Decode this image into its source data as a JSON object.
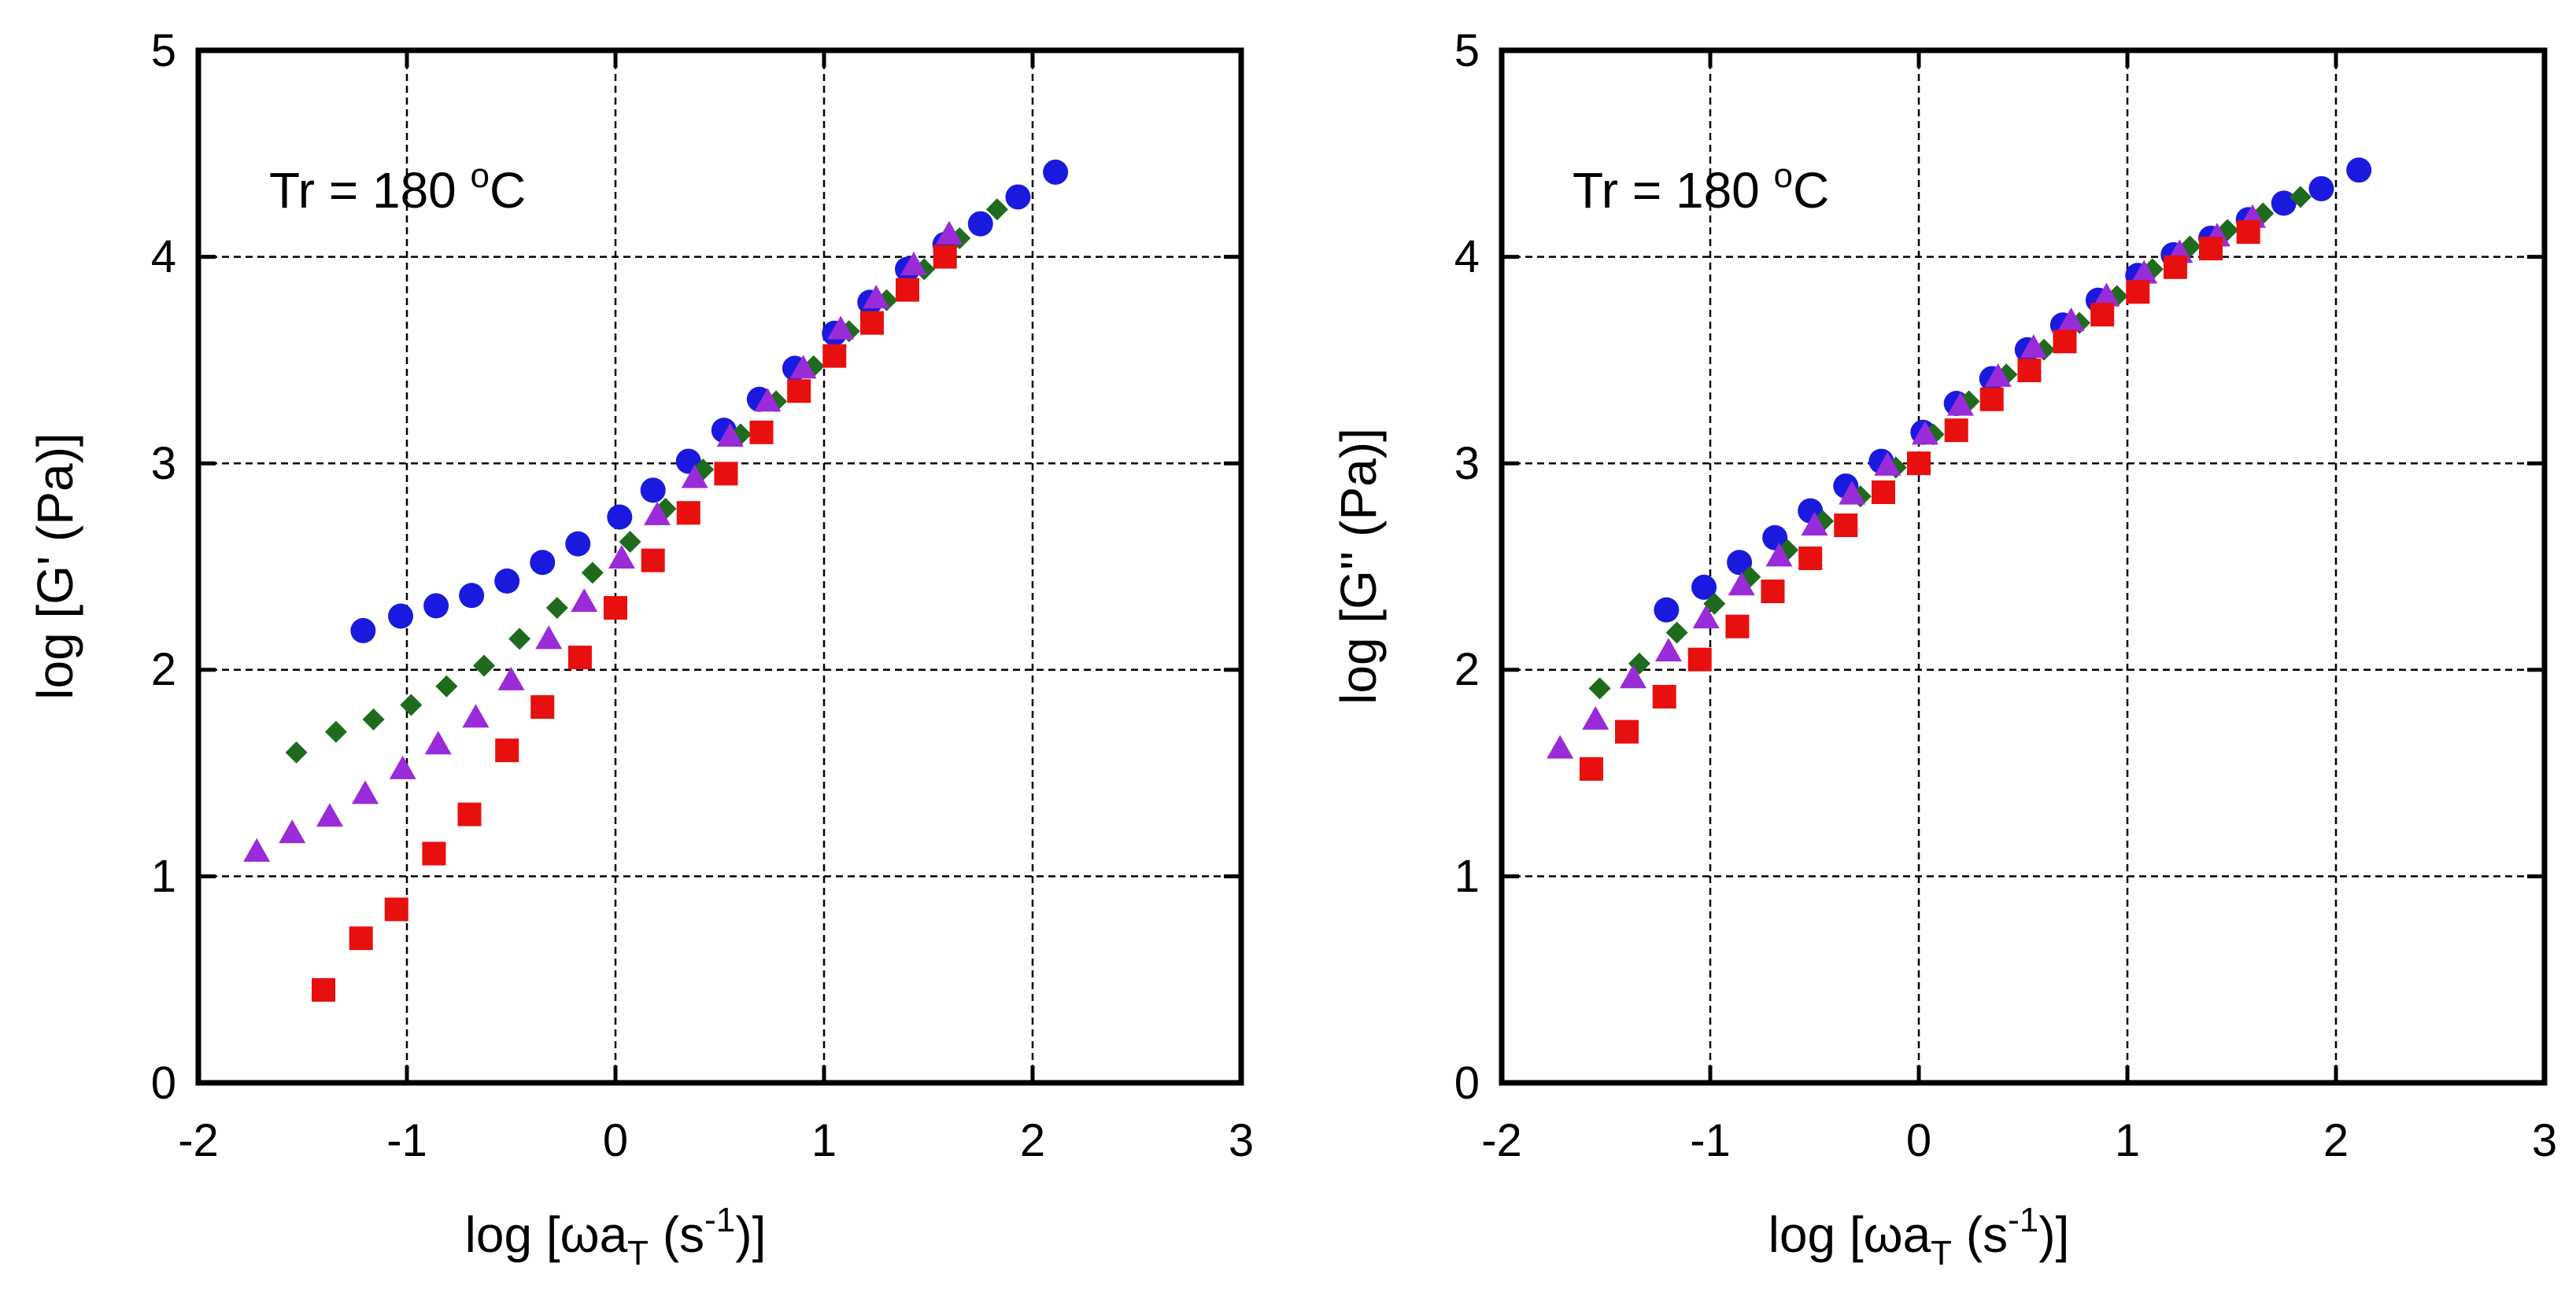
{
  "chart_data": [
    {
      "type": "scatter",
      "title": "",
      "annotation": {
        "text": "Tr = 180 ",
        "sup": "o",
        "suffix": "C"
      },
      "xlabel": {
        "pre": "log [ωa",
        "sub": "T",
        "mid": " (s",
        "sup": "-1",
        "post": ")]"
      },
      "ylabel": "log [G' (Pa)]",
      "xlim": [
        -2,
        3
      ],
      "ylim": [
        0,
        5
      ],
      "xticks": [
        "-2",
        "-1",
        "0",
        "1",
        "2",
        "3"
      ],
      "yticks": [
        "0",
        "1",
        "2",
        "3",
        "4",
        "5"
      ],
      "grid": true,
      "series": [
        {
          "name": "blue-circle",
          "marker": "circle",
          "color": "#1a1adf",
          "x": [
            -1.21,
            -1.03,
            -0.86,
            -0.69,
            -0.52,
            -0.35,
            -0.18,
            0.02,
            0.18,
            0.35,
            0.52,
            0.69,
            0.86,
            1.05,
            1.22,
            1.4,
            1.58,
            1.75,
            1.93,
            2.11
          ],
          "y": [
            2.19,
            2.26,
            2.31,
            2.36,
            2.43,
            2.52,
            2.61,
            2.74,
            2.87,
            3.01,
            3.16,
            3.31,
            3.46,
            3.63,
            3.78,
            3.94,
            4.06,
            4.16,
            4.29,
            4.41
          ]
        },
        {
          "name": "green-diamond",
          "marker": "diamond",
          "color": "#1e6b1e",
          "x": [
            -1.53,
            -1.34,
            -1.16,
            -0.98,
            -0.81,
            -0.63,
            -0.46,
            -0.28,
            -0.11,
            0.07,
            0.24,
            0.42,
            0.6,
            0.77,
            0.95,
            1.12,
            1.3,
            1.48,
            1.65,
            1.83
          ],
          "y": [
            1.6,
            1.7,
            1.76,
            1.83,
            1.92,
            2.02,
            2.15,
            2.3,
            2.47,
            2.62,
            2.78,
            2.97,
            3.14,
            3.3,
            3.47,
            3.64,
            3.79,
            3.94,
            4.09,
            4.23
          ]
        },
        {
          "name": "purple-triangle",
          "marker": "triangle",
          "color": "#9a2bd8",
          "x": [
            -1.72,
            -1.55,
            -1.37,
            -1.2,
            -1.02,
            -0.85,
            -0.67,
            -0.5,
            -0.32,
            -0.15,
            0.03,
            0.2,
            0.38,
            0.55,
            0.73,
            0.9,
            1.08,
            1.25,
            1.43,
            1.6
          ],
          "y": [
            1.12,
            1.21,
            1.29,
            1.4,
            1.52,
            1.64,
            1.77,
            1.95,
            2.15,
            2.33,
            2.54,
            2.75,
            2.93,
            3.13,
            3.3,
            3.46,
            3.65,
            3.8,
            3.96,
            4.11
          ]
        },
        {
          "name": "red-square",
          "marker": "square",
          "color": "#e80f0f",
          "x": [
            -1.4,
            -1.22,
            -1.05,
            -0.87,
            -0.7,
            -0.52,
            -0.35,
            -0.17,
            0.0,
            0.18,
            0.35,
            0.53,
            0.7,
            0.88,
            1.05,
            1.23,
            1.4,
            1.58
          ],
          "y": [
            0.45,
            0.7,
            0.84,
            1.11,
            1.3,
            1.61,
            1.82,
            2.06,
            2.3,
            2.53,
            2.76,
            2.95,
            3.15,
            3.35,
            3.52,
            3.68,
            3.84,
            4.0
          ]
        }
      ]
    },
    {
      "type": "scatter",
      "title": "",
      "annotation": {
        "text": "Tr = 180 ",
        "sup": "o",
        "suffix": "C"
      },
      "xlabel": {
        "pre": "log [ωa",
        "sub": "T",
        "mid": " (s",
        "sup": "-1",
        "post": ")]"
      },
      "ylabel": "log [G'' (Pa)]",
      "xlim": [
        -2,
        3
      ],
      "ylim": [
        0,
        5
      ],
      "xticks": [
        "-2",
        "-1",
        "0",
        "1",
        "2",
        "3"
      ],
      "yticks": [
        "0",
        "1",
        "2",
        "3",
        "4",
        "5"
      ],
      "grid": true,
      "series": [
        {
          "name": "blue-circle",
          "marker": "circle",
          "color": "#1a1adf",
          "x": [
            -1.21,
            -1.03,
            -0.86,
            -0.69,
            -0.52,
            -0.35,
            -0.18,
            0.02,
            0.18,
            0.35,
            0.52,
            0.69,
            0.86,
            1.05,
            1.22,
            1.4,
            1.58,
            1.75,
            1.93,
            2.11
          ],
          "y": [
            2.29,
            2.4,
            2.52,
            2.64,
            2.77,
            2.89,
            3.01,
            3.15,
            3.29,
            3.41,
            3.55,
            3.67,
            3.79,
            3.91,
            4.01,
            4.09,
            4.18,
            4.26,
            4.33,
            4.42
          ]
        },
        {
          "name": "green-diamond",
          "marker": "diamond",
          "color": "#1e6b1e",
          "x": [
            -1.53,
            -1.34,
            -1.16,
            -0.98,
            -0.81,
            -0.63,
            -0.46,
            -0.28,
            -0.11,
            0.07,
            0.24,
            0.42,
            0.6,
            0.77,
            0.95,
            1.12,
            1.3,
            1.48,
            1.65,
            1.83
          ],
          "y": [
            1.91,
            2.03,
            2.18,
            2.32,
            2.45,
            2.58,
            2.72,
            2.84,
            2.98,
            3.14,
            3.3,
            3.43,
            3.55,
            3.68,
            3.81,
            3.94,
            4.05,
            4.13,
            4.21,
            4.29
          ]
        },
        {
          "name": "purple-triangle",
          "marker": "triangle",
          "color": "#9a2bd8",
          "x": [
            -1.72,
            -1.55,
            -1.37,
            -1.2,
            -1.02,
            -0.85,
            -0.67,
            -0.5,
            -0.32,
            -0.15,
            0.03,
            0.2,
            0.38,
            0.55,
            0.73,
            0.9,
            1.08,
            1.25,
            1.43,
            1.6
          ],
          "y": [
            1.62,
            1.76,
            1.96,
            2.09,
            2.25,
            2.41,
            2.55,
            2.7,
            2.85,
            2.99,
            3.14,
            3.28,
            3.42,
            3.56,
            3.69,
            3.81,
            3.92,
            4.02,
            4.1,
            4.19
          ]
        },
        {
          "name": "red-square",
          "marker": "square",
          "color": "#e80f0f",
          "x": [
            -1.57,
            -1.4,
            -1.22,
            -1.05,
            -0.87,
            -0.7,
            -0.52,
            -0.35,
            -0.17,
            0.0,
            0.18,
            0.35,
            0.53,
            0.7,
            0.88,
            1.05,
            1.23,
            1.4,
            1.58
          ],
          "y": [
            1.52,
            1.7,
            1.87,
            2.05,
            2.21,
            2.38,
            2.54,
            2.7,
            2.86,
            3.0,
            3.16,
            3.31,
            3.45,
            3.59,
            3.72,
            3.83,
            3.95,
            4.04,
            4.12
          ]
        }
      ]
    }
  ]
}
